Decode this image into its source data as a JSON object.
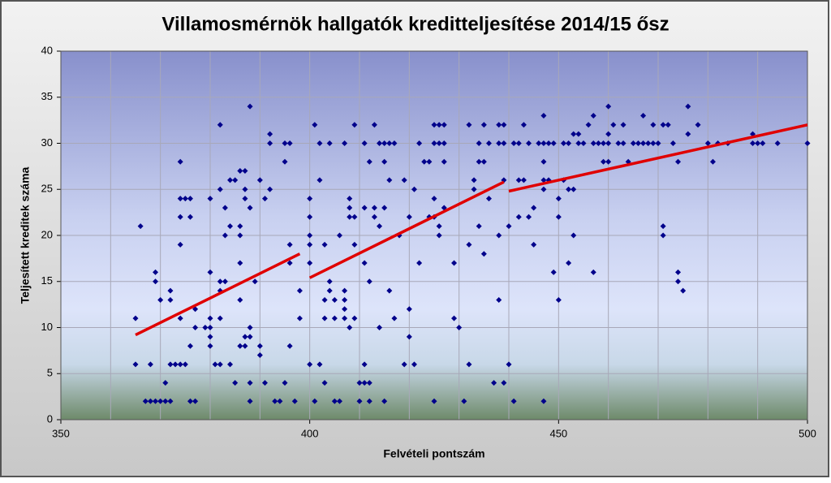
{
  "chart_data": {
    "type": "scatter",
    "title": "Villamosmérnök hallgatók kreditteljesítése 2014/15 ősz",
    "x_label": "Felvételi pontszám",
    "y_label": "Teljesített kreditek száma",
    "xlim": [
      350,
      500
    ],
    "xticks": [
      350,
      400,
      450,
      500
    ],
    "xgrid": [
      360,
      370,
      380,
      390,
      410,
      420,
      430,
      440,
      460,
      470,
      480,
      490
    ],
    "ylim": [
      0,
      40
    ],
    "yticks": [
      0,
      5,
      10,
      15,
      20,
      25,
      30,
      35,
      40
    ],
    "grid": true,
    "color": "#00008b",
    "trend_color": "#e00000",
    "x": [
      365,
      365,
      366,
      367,
      368,
      368,
      369,
      369,
      369,
      370,
      370,
      371,
      371,
      372,
      372,
      372,
      372,
      373,
      374,
      374,
      374,
      374,
      374,
      374,
      375,
      375,
      376,
      376,
      376,
      376,
      377,
      377,
      377,
      379,
      380,
      380,
      380,
      380,
      380,
      380,
      381,
      382,
      382,
      382,
      382,
      382,
      382,
      383,
      383,
      383,
      384,
      384,
      384,
      385,
      385,
      386,
      386,
      386,
      386,
      386,
      386,
      387,
      387,
      387,
      387,
      387,
      388,
      388,
      388,
      388,
      388,
      388,
      389,
      390,
      390,
      390,
      391,
      391,
      392,
      392,
      392,
      393,
      395,
      395,
      395,
      394,
      396,
      396,
      396,
      396,
      397,
      398,
      398,
      400,
      400,
      400,
      400,
      400,
      400,
      401,
      401,
      402,
      402,
      402,
      403,
      403,
      403,
      403,
      404,
      404,
      404,
      405,
      405,
      405,
      406,
      406,
      407,
      407,
      407,
      407,
      407,
      408,
      408,
      408,
      408,
      409,
      409,
      409,
      409,
      410,
      410,
      411,
      411,
      411,
      411,
      411,
      412,
      412,
      412,
      412,
      413,
      413,
      413,
      414,
      414,
      414,
      415,
      415,
      415,
      415,
      416,
      416,
      416,
      417,
      417,
      418,
      419,
      419,
      420,
      420,
      420,
      421,
      421,
      422,
      422,
      423,
      424,
      424,
      425,
      425,
      425,
      425,
      426,
      426,
      425,
      426,
      426,
      427,
      427,
      427,
      427,
      429,
      429,
      430,
      431,
      432,
      432,
      432,
      433,
      433,
      434,
      434,
      434,
      435,
      435,
      435,
      436,
      436,
      437,
      438,
      438,
      438,
      438,
      439,
      439,
      439,
      439,
      440,
      440,
      441,
      441,
      442,
      442,
      442,
      443,
      443,
      444,
      444,
      445,
      445,
      446,
      447,
      447,
      447,
      447,
      447,
      447,
      448,
      448,
      449,
      449,
      450,
      450,
      450,
      451,
      451,
      452,
      452,
      452,
      453,
      453,
      453,
      454,
      454,
      455,
      456,
      457,
      457,
      457,
      458,
      459,
      459,
      460,
      460,
      460,
      460,
      461,
      462,
      463,
      463,
      464,
      465,
      466,
      467,
      467,
      468,
      469,
      469,
      470,
      471,
      471,
      471,
      472,
      473,
      474,
      474,
      474,
      475,
      476,
      476,
      478,
      480,
      481,
      482,
      484,
      489,
      489,
      490,
      491,
      494,
      500
    ],
    "values": [
      11,
      6,
      21,
      2,
      2,
      6,
      16,
      15,
      2,
      13,
      2,
      4,
      2,
      14,
      13,
      2,
      6,
      6,
      28,
      24,
      22,
      19,
      11,
      6,
      24,
      6,
      24,
      22,
      8,
      2,
      12,
      10,
      2,
      10,
      24,
      16,
      11,
      10,
      9,
      8,
      6,
      32,
      25,
      15,
      14,
      11,
      6,
      15,
      23,
      20,
      21,
      26,
      6,
      4,
      26,
      21,
      20,
      17,
      13,
      8,
      27,
      27,
      25,
      8,
      9,
      24,
      34,
      23,
      10,
      9,
      4,
      2,
      15,
      26,
      8,
      7,
      24,
      4,
      31,
      30,
      25,
      2,
      30,
      28,
      4,
      2,
      30,
      19,
      17,
      8,
      2,
      14,
      11,
      24,
      22,
      20,
      19,
      17,
      6,
      32,
      2,
      30,
      26,
      6,
      19,
      13,
      11,
      4,
      30,
      15,
      14,
      11,
      13,
      2,
      2,
      20,
      30,
      14,
      13,
      12,
      11,
      24,
      23,
      22,
      10,
      32,
      22,
      19,
      11,
      4,
      2,
      30,
      23,
      6,
      4,
      17,
      28,
      15,
      4,
      2,
      32,
      23,
      22,
      30,
      10,
      21,
      30,
      28,
      23,
      2,
      30,
      26,
      14,
      30,
      11,
      20,
      26,
      6,
      22,
      12,
      9,
      25,
      6,
      30,
      17,
      28,
      28,
      22,
      30,
      22,
      32,
      24,
      21,
      20,
      2,
      32,
      30,
      23,
      32,
      28,
      30,
      11,
      17,
      10,
      2,
      32,
      19,
      6,
      26,
      25,
      30,
      28,
      21,
      32,
      28,
      18,
      30,
      24,
      4,
      20,
      13,
      32,
      30,
      32,
      30,
      4,
      26,
      6,
      21,
      2,
      30,
      30,
      22,
      26,
      26,
      32,
      30,
      22,
      19,
      23,
      30,
      30,
      28,
      33,
      26,
      25,
      2,
      30,
      26,
      30,
      16,
      24,
      22,
      13,
      30,
      26,
      30,
      25,
      17,
      31,
      25,
      20,
      31,
      30,
      30,
      32,
      33,
      30,
      16,
      30,
      30,
      28,
      34,
      31,
      30,
      28,
      32,
      30,
      30,
      32,
      28,
      30,
      30,
      30,
      33,
      30,
      32,
      30,
      30,
      21,
      32,
      20,
      32,
      30,
      28,
      16,
      15,
      14,
      34,
      31,
      32,
      30,
      28,
      30,
      30,
      31,
      30,
      30,
      30,
      30,
      30
    ],
    "trendlines": [
      {
        "x": [
          365,
          398
        ],
        "y": [
          9.2,
          18
        ]
      },
      {
        "x": [
          400,
          439
        ],
        "y": [
          15.4,
          25.8
        ]
      },
      {
        "x": [
          440,
          500
        ],
        "y": [
          24.8,
          32
        ]
      }
    ]
  }
}
